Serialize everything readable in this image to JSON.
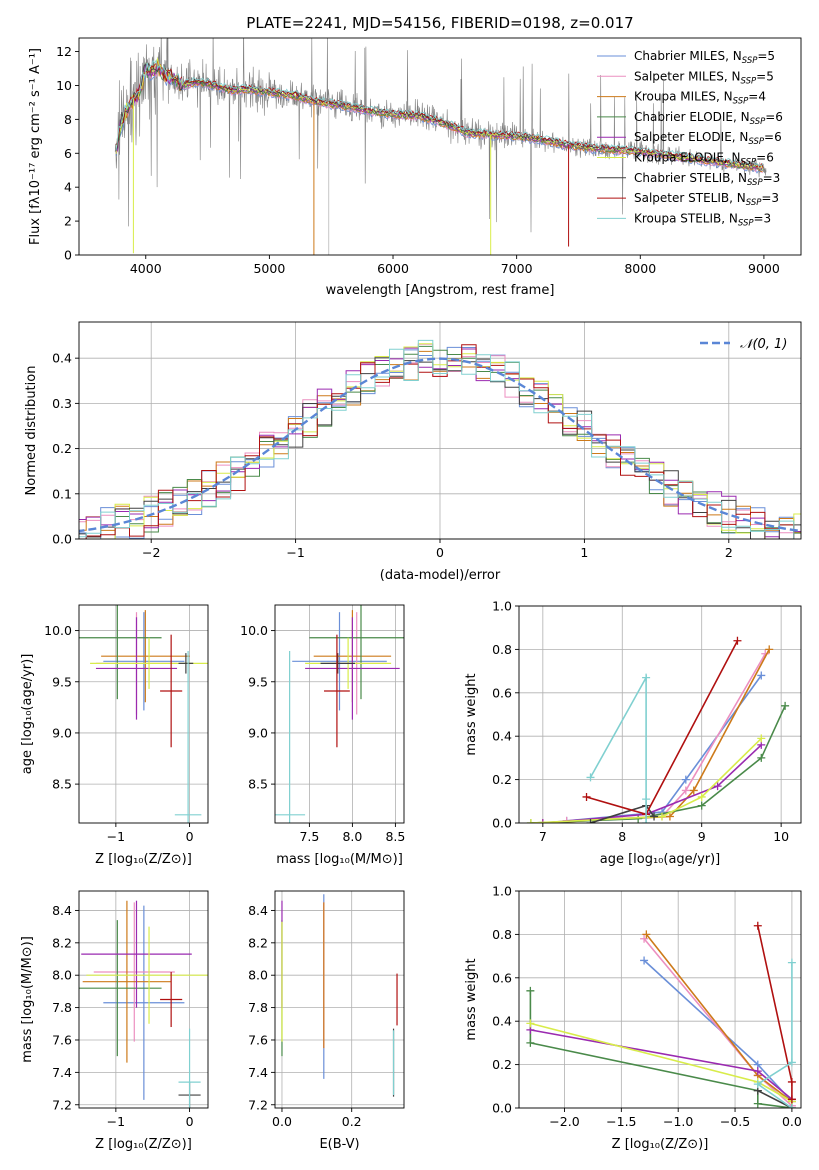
{
  "colors": {
    "Chabrier MILES": "#6a8fd8",
    "Salpeter MILES": "#ec8fc0",
    "Kroupa MILES": "#cd7a1a",
    "Chabrier ELODIE": "#4a8a4a",
    "Salpeter ELODIE": "#9a2ab0",
    "Kroupa ELODIE": "#d8ec4a",
    "Chabrier STELIB": "#404040",
    "Salpeter STELIB": "#b01010",
    "Kroupa STELIB": "#80d0d0",
    "normal": "#5a86d6",
    "grid": "#b0b0b0",
    "spectrum": "#808080"
  },
  "chart_data": [
    {
      "id": "spectrum",
      "type": "line",
      "title": "PLATE=2241, MJD=54156, FIBERID=0198, z=0.017",
      "xlabel": "wavelength [Angstrom, rest frame]",
      "ylabel": "Flux [fλ10⁻¹⁷ erg cm⁻² s⁻¹ A⁻¹]",
      "xlim": [
        3460,
        9300
      ],
      "ylim": [
        0,
        12.8
      ],
      "xticks": [
        4000,
        5000,
        6000,
        7000,
        8000,
        9000
      ],
      "yticks": [
        0,
        2,
        4,
        6,
        8,
        10,
        12
      ],
      "grid": false,
      "legend_position": "top-right",
      "legend": [
        {
          "label": "Chabrier MILES, N",
          "sub": "SSP",
          "eq": "=5"
        },
        {
          "label": "Salpeter MILES, N",
          "sub": "SSP",
          "eq": "=5"
        },
        {
          "label": "Kroupa MILES, N",
          "sub": "SSP",
          "eq": "=4"
        },
        {
          "label": "Chabrier ELODIE, N",
          "sub": "SSP",
          "eq": "=6"
        },
        {
          "label": "Salpeter ELODIE, N",
          "sub": "SSP",
          "eq": "=6"
        },
        {
          "label": "Kroupa ELODIE, N",
          "sub": "SSP",
          "eq": "=6"
        },
        {
          "label": "Chabrier STELIB, N",
          "sub": "SSP",
          "eq": "=3"
        },
        {
          "label": "Salpeter STELIB, N",
          "sub": "SSP",
          "eq": "=3"
        },
        {
          "label": "Kroupa STELIB, N",
          "sub": "SSP",
          "eq": "=3"
        }
      ],
      "continuum_x": [
        3750,
        3800,
        3850,
        3900,
        3950,
        4000,
        4050,
        4100,
        4150,
        4200,
        4300,
        4400,
        4500,
        4600,
        4700,
        4800,
        4900,
        5000,
        5200,
        5400,
        5600,
        5800,
        6000,
        6200,
        6400,
        6600,
        6800,
        7000,
        7200,
        7400,
        7600,
        7800,
        8000,
        8200,
        8400,
        8600,
        8800,
        9000
      ],
      "continuum_y": [
        5.8,
        7.8,
        8.6,
        9.2,
        9.6,
        11.0,
        10.8,
        11.2,
        10.6,
        10.5,
        10.0,
        10.2,
        10.1,
        9.9,
        9.7,
        9.8,
        9.7,
        9.6,
        9.4,
        9.0,
        8.8,
        8.5,
        8.3,
        8.2,
        7.8,
        7.2,
        7.1,
        7.0,
        6.8,
        6.5,
        6.3,
        6.2,
        6.1,
        5.9,
        5.7,
        5.5,
        5.3,
        5.1
      ],
      "model_dips": [
        {
          "x": 3900,
          "y": 0.1,
          "model": "Kroupa ELODIE"
        },
        {
          "x": 5360,
          "y": 0.0,
          "model": "Kroupa MILES"
        },
        {
          "x": 6790,
          "y": 0.0,
          "model": "Kroupa ELODIE"
        },
        {
          "x": 7420,
          "y": 0.5,
          "model": "Salpeter STELIB"
        }
      ]
    },
    {
      "id": "residuals",
      "type": "histogram",
      "xlabel": "(data-model)/error",
      "ylabel": "Normed distribution",
      "xlim": [
        -2.5,
        2.5
      ],
      "ylim": [
        0,
        0.48
      ],
      "xticks": [
        -2,
        -1,
        0,
        1,
        2
      ],
      "yticks": [
        0.0,
        0.1,
        0.2,
        0.3,
        0.4
      ],
      "grid": true,
      "bin_width": 0.1,
      "legend_position": "top-right",
      "legend_label": "𝒩(0, 1)",
      "normal": {
        "mean": 0,
        "sigma": 1
      }
    },
    {
      "id": "age_vs_z",
      "type": "errorbar",
      "xlabel": "Z [log₁₀(Z/Z⊙)]",
      "ylabel": "age  [log₁₀(age/yr)]",
      "xlim": [
        -1.5,
        0.25
      ],
      "ylim": [
        8.12,
        10.25
      ],
      "xticks": [
        -1,
        0
      ],
      "yticks": [
        8.5,
        9.0,
        9.5,
        10.0
      ],
      "grid": true,
      "points": [
        {
          "model": "Chabrier MILES",
          "x": -0.62,
          "xerr": 0.55,
          "y": 9.7,
          "yerr": 0.48
        },
        {
          "model": "Salpeter MILES",
          "x": -0.72,
          "xerr": 0.55,
          "y": 9.68,
          "yerr": 0.5
        },
        {
          "model": "Kroupa MILES",
          "x": -0.6,
          "xerr": 0.6,
          "y": 9.75,
          "yerr": 0.45
        },
        {
          "model": "Chabrier ELODIE",
          "x": -0.98,
          "xerr": 0.6,
          "y": 9.93,
          "yerr": 0.6
        },
        {
          "model": "Salpeter ELODIE",
          "x": -0.72,
          "xerr": 0.55,
          "y": 9.63,
          "yerr": 0.5
        },
        {
          "model": "Kroupa ELODIE",
          "x": -0.55,
          "xerr": 0.8,
          "y": 9.68,
          "yerr": 0.25
        },
        {
          "model": "Chabrier STELIB",
          "x": -0.05,
          "xerr": 0.1,
          "y": 9.68,
          "yerr": 0.1
        },
        {
          "model": "Salpeter STELIB",
          "x": -0.25,
          "xerr": 0.15,
          "y": 9.41,
          "yerr": 0.55
        },
        {
          "model": "Kroupa STELIB",
          "x": -0.02,
          "xerr": 0.18,
          "y": 8.2,
          "yerr": 1.6
        }
      ]
    },
    {
      "id": "age_vs_mass",
      "type": "errorbar",
      "xlabel": "mass [log₁₀(M/M⊙)]",
      "ylabel": "",
      "xlim": [
        7.1,
        8.6
      ],
      "ylim": [
        8.12,
        10.25
      ],
      "xticks": [
        7.5,
        8.0,
        8.5
      ],
      "yticks": [
        8.5,
        9.0,
        9.5,
        10.0
      ],
      "grid": true,
      "points": [
        {
          "model": "Chabrier MILES",
          "x": 7.85,
          "xerr": 0.55,
          "y": 9.7,
          "yerr": 0.48
        },
        {
          "model": "Salpeter MILES",
          "x": 8.05,
          "xerr": 0.35,
          "y": 9.68,
          "yerr": 0.5
        },
        {
          "model": "Kroupa MILES",
          "x": 8.0,
          "xerr": 0.45,
          "y": 9.75,
          "yerr": 0.45
        },
        {
          "model": "Chabrier ELODIE",
          "x": 8.1,
          "xerr": 0.6,
          "y": 9.93,
          "yerr": 0.6
        },
        {
          "model": "Salpeter ELODIE",
          "x": 8.0,
          "xerr": 0.55,
          "y": 9.63,
          "yerr": 0.5
        },
        {
          "model": "Kroupa ELODIE",
          "x": 7.95,
          "xerr": 0.5,
          "y": 9.68,
          "yerr": 0.25
        },
        {
          "model": "Chabrier STELIB",
          "x": 7.83,
          "xerr": 0.2,
          "y": 9.68,
          "yerr": 0.1
        },
        {
          "model": "Salpeter STELIB",
          "x": 7.82,
          "xerr": 0.15,
          "y": 9.41,
          "yerr": 0.55
        },
        {
          "model": "Kroupa STELIB",
          "x": 7.27,
          "xerr": 0.18,
          "y": 8.2,
          "yerr": 1.6
        }
      ]
    },
    {
      "id": "weight_vs_age",
      "type": "line",
      "xlabel": "age  [log₁₀(age/yr)]",
      "ylabel": "mass weight",
      "xlim": [
        6.7,
        10.25
      ],
      "ylim": [
        0,
        1.0
      ],
      "xticks": [
        7,
        8,
        9,
        10
      ],
      "yticks": [
        0.0,
        0.2,
        0.4,
        0.6,
        0.8,
        1.0
      ],
      "grid": true,
      "series": [
        {
          "model": "Chabrier MILES",
          "x": [
            7.3,
            8.5,
            8.8,
            9.75
          ],
          "y": [
            0.01,
            0.05,
            0.2,
            0.68
          ]
        },
        {
          "model": "Salpeter MILES",
          "x": [
            7.3,
            8.5,
            8.8,
            9.8
          ],
          "y": [
            0.01,
            0.03,
            0.15,
            0.78
          ]
        },
        {
          "model": "Kroupa MILES",
          "x": [
            7.0,
            8.6,
            8.9,
            9.85
          ],
          "y": [
            0.0,
            0.03,
            0.15,
            0.8
          ]
        },
        {
          "model": "Chabrier ELODIE",
          "x": [
            6.85,
            8.2,
            9.0,
            9.75,
            10.05
          ],
          "y": [
            0.0,
            0.02,
            0.08,
            0.3,
            0.54
          ]
        },
        {
          "model": "Salpeter ELODIE",
          "x": [
            7.0,
            8.3,
            9.2,
            9.75
          ],
          "y": [
            0.0,
            0.04,
            0.17,
            0.36
          ]
        },
        {
          "model": "Kroupa ELODIE",
          "x": [
            6.85,
            8.5,
            9.0,
            9.75
          ],
          "y": [
            0.0,
            0.03,
            0.12,
            0.39
          ]
        },
        {
          "model": "Chabrier STELIB",
          "x": [
            7.6,
            8.3,
            8.4
          ],
          "y": [
            0.0,
            0.08,
            0.03
          ]
        },
        {
          "model": "Salpeter STELIB",
          "x": [
            7.55,
            8.3,
            9.45
          ],
          "y": [
            0.12,
            0.04,
            0.84
          ]
        },
        {
          "model": "Kroupa STELIB",
          "x": [
            7.6,
            8.3,
            8.3,
            8.3
          ],
          "y": [
            0.21,
            0.67,
            0.11,
            0.0
          ]
        }
      ]
    },
    {
      "id": "mass_vs_z",
      "type": "errorbar",
      "xlabel": "Z [log₁₀(Z/Z⊙)]",
      "ylabel": "mass [log₁₀(M/M⊙)]",
      "xlim": [
        -1.5,
        0.25
      ],
      "ylim": [
        7.18,
        8.52
      ],
      "xticks": [
        -1,
        0
      ],
      "yticks": [
        7.2,
        7.4,
        7.6,
        7.8,
        8.0,
        8.2,
        8.4
      ],
      "grid": true,
      "points": [
        {
          "model": "Chabrier MILES",
          "x": -0.62,
          "xerr": 0.55,
          "y": 7.83,
          "yerr": 0.6
        },
        {
          "model": "Salpeter MILES",
          "x": -0.75,
          "xerr": 0.55,
          "y": 8.02,
          "yerr": 0.43
        },
        {
          "model": "Kroupa MILES",
          "x": -0.85,
          "xerr": 0.6,
          "y": 7.96,
          "yerr": 0.5
        },
        {
          "model": "Chabrier ELODIE",
          "x": -0.98,
          "xerr": 0.6,
          "y": 7.92,
          "yerr": 0.42
        },
        {
          "model": "Salpeter ELODIE",
          "x": -0.72,
          "xerr": 0.75,
          "y": 8.13,
          "yerr": 0.33
        },
        {
          "model": "Kroupa ELODIE",
          "x": -0.55,
          "xerr": 0.85,
          "y": 8.0,
          "yerr": 0.3
        },
        {
          "model": "Chabrier STELIB",
          "x": 0.0,
          "xerr": 0.15,
          "y": 7.26,
          "yerr": 0.08
        },
        {
          "model": "Salpeter STELIB",
          "x": -0.25,
          "xerr": 0.15,
          "y": 7.85,
          "yerr": 0.17
        },
        {
          "model": "Kroupa STELIB",
          "x": 0.0,
          "xerr": 0.15,
          "y": 7.34,
          "yerr": 0.33
        }
      ]
    },
    {
      "id": "mass_vs_ebv",
      "type": "errorbar",
      "xlabel": "E(B-V)",
      "ylabel": "",
      "xlim": [
        -0.02,
        0.35
      ],
      "ylim": [
        7.18,
        8.52
      ],
      "xticks": [
        0.0,
        0.2
      ],
      "yticks": [
        7.2,
        7.4,
        7.6,
        7.8,
        8.0,
        8.2,
        8.4
      ],
      "grid": true,
      "points": [
        {
          "model": "Chabrier MILES",
          "x": 0.12,
          "xerr": 0.0,
          "y": 7.93,
          "yerr": 0.57
        },
        {
          "model": "Salpeter MILES",
          "x": 0.12,
          "xerr": 0.0,
          "y": 8.0,
          "yerr": 0.45
        },
        {
          "model": "Kroupa MILES",
          "x": 0.12,
          "xerr": 0.0,
          "y": 8.0,
          "yerr": 0.45
        },
        {
          "model": "Chabrier ELODIE",
          "x": 0.0,
          "xerr": 0.0,
          "y": 7.92,
          "yerr": 0.42
        },
        {
          "model": "Salpeter ELODIE",
          "x": 0.0,
          "xerr": 0.0,
          "y": 8.13,
          "yerr": 0.33
        },
        {
          "model": "Kroupa ELODIE",
          "x": 0.0,
          "xerr": 0.0,
          "y": 7.96,
          "yerr": 0.37
        },
        {
          "model": "Chabrier STELIB",
          "x": 0.32,
          "xerr": 0.0,
          "y": 7.46,
          "yerr": 0.21
        },
        {
          "model": "Salpeter STELIB",
          "x": 0.33,
          "xerr": 0.0,
          "y": 7.85,
          "yerr": 0.16
        },
        {
          "model": "Kroupa STELIB",
          "x": 0.32,
          "xerr": 0.0,
          "y": 7.46,
          "yerr": 0.2
        }
      ]
    },
    {
      "id": "weight_vs_z",
      "type": "line",
      "xlabel": "Z [log₁₀(Z/Z⊙)]",
      "ylabel": "mass weight",
      "xlim": [
        -2.4,
        0.08
      ],
      "ylim": [
        0,
        1.0
      ],
      "xticks": [
        -2.0,
        -1.5,
        -1.0,
        -0.5,
        0.0
      ],
      "yticks": [
        0.0,
        0.2,
        0.4,
        0.6,
        0.8,
        1.0
      ],
      "grid": true,
      "series": [
        {
          "model": "Chabrier MILES",
          "x": [
            -1.3,
            -0.3,
            0.0
          ],
          "y": [
            0.68,
            0.2,
            0.03
          ]
        },
        {
          "model": "Salpeter MILES",
          "x": [
            -1.3,
            -0.3,
            0.0
          ],
          "y": [
            0.78,
            0.15,
            0.01
          ]
        },
        {
          "model": "Kroupa MILES",
          "x": [
            -1.28,
            -0.3,
            0.0
          ],
          "y": [
            0.8,
            0.15,
            0.03
          ]
        },
        {
          "model": "Chabrier ELODIE",
          "x": [
            -2.3,
            -2.3,
            -0.3,
            -0.3,
            0.0
          ],
          "y": [
            0.54,
            0.3,
            0.08,
            0.02,
            0.0
          ]
        },
        {
          "model": "Salpeter ELODIE",
          "x": [
            -2.3,
            -0.3,
            0.0
          ],
          "y": [
            0.36,
            0.17,
            0.04
          ]
        },
        {
          "model": "Kroupa ELODIE",
          "x": [
            -2.3,
            -0.3,
            0.0
          ],
          "y": [
            0.39,
            0.12,
            0.03
          ]
        },
        {
          "model": "Chabrier STELIB",
          "x": [
            -0.3,
            0.0
          ],
          "y": [
            0.08,
            0.0
          ]
        },
        {
          "model": "Salpeter STELIB",
          "x": [
            -0.3,
            0.0,
            0.0
          ],
          "y": [
            0.84,
            0.12,
            0.04
          ]
        },
        {
          "model": "Kroupa STELIB",
          "x": [
            0.0,
            0.0,
            -0.3,
            0.0
          ],
          "y": [
            0.67,
            0.21,
            0.11,
            0.0
          ]
        }
      ]
    }
  ]
}
